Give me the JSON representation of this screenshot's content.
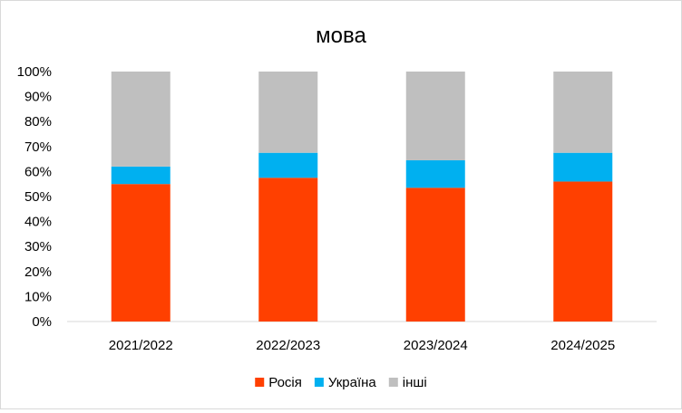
{
  "chart_data": {
    "type": "bar",
    "stacked": true,
    "percent": true,
    "title": "мова",
    "xlabel": "",
    "ylabel": "",
    "categories": [
      "2021/2022",
      "2022/2023",
      "2023/2024",
      "2024/2025"
    ],
    "series": [
      {
        "name": "Росія",
        "color": "#FF4000",
        "values": [
          55,
          57.5,
          53.5,
          56
        ]
      },
      {
        "name": "Україна",
        "color": "#00B0F0",
        "values": [
          7,
          10,
          11,
          11.5
        ]
      },
      {
        "name": "інші",
        "color": "#BFBFBF",
        "values": [
          38,
          32.5,
          35.5,
          32.5
        ]
      }
    ],
    "yticks": [
      "0%",
      "10%",
      "20%",
      "30%",
      "40%",
      "50%",
      "60%",
      "70%",
      "80%",
      "90%",
      "100%"
    ],
    "ylim": [
      0,
      100
    ],
    "grid": false,
    "legend": "bottom"
  }
}
